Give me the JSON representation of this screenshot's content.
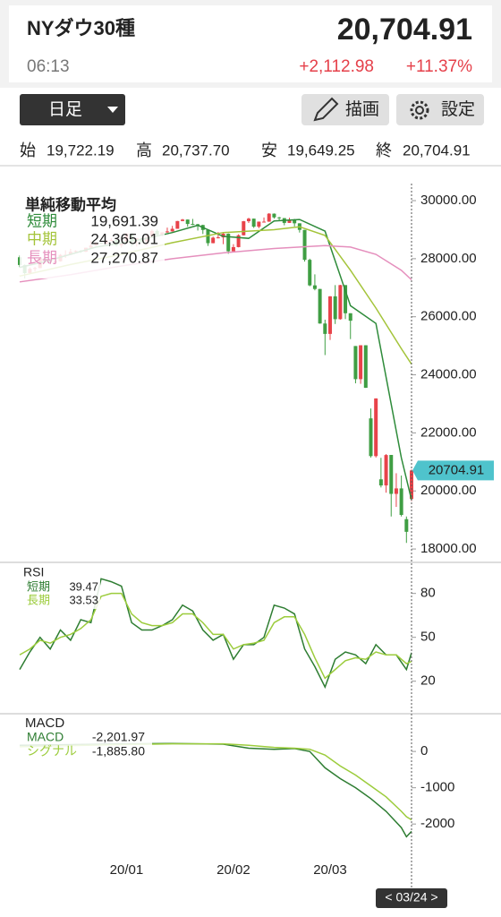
{
  "header": {
    "title": "NYダウ30種",
    "price": "20,704.91",
    "time": "06:13",
    "change": "+2,112.98",
    "change_pct": "+11.37%"
  },
  "controls": {
    "period": "日足",
    "draw": "描画",
    "settings": "設定"
  },
  "ohlc": [
    {
      "label": "始",
      "value": "19,722.19"
    },
    {
      "label": "高",
      "value": "20,737.70"
    },
    {
      "label": "安",
      "value": "19,649.25"
    },
    {
      "label": "終",
      "value": "20,704.91"
    }
  ],
  "cursor_label": "< 03/24 >",
  "chart_data": [
    {
      "type": "candlestick",
      "title": "単純移動平均",
      "up_color": "#e8434a",
      "down_color": "#3f9e43",
      "ylim": [
        17570,
        31050
      ],
      "yticks": [
        {
          "value": 30000,
          "label": "30000.00"
        },
        {
          "value": 28000,
          "label": "28000.00"
        },
        {
          "value": 26000,
          "label": "26000.00"
        },
        {
          "value": 24000,
          "label": "24000.00"
        },
        {
          "value": 22000,
          "label": "22000.00"
        },
        {
          "value": 20000,
          "label": "20000.00"
        },
        {
          "value": 18000,
          "label": "18000.00"
        }
      ],
      "last_label": "20704.91",
      "candles": [
        [
          28050,
          28110,
          27710,
          27783
        ],
        [
          27783,
          27800,
          27320,
          27503
        ],
        [
          27503,
          27700,
          27480,
          27650
        ],
        [
          27650,
          27720,
          27560,
          27677
        ],
        [
          27677,
          28060,
          27670,
          28015
        ],
        [
          28015,
          28030,
          27880,
          27909
        ],
        [
          27909,
          27940,
          27840,
          27881
        ],
        [
          27881,
          27930,
          27860,
          27911
        ],
        [
          27911,
          28160,
          27900,
          28132
        ],
        [
          28132,
          28290,
          28030,
          28135
        ],
        [
          28135,
          28340,
          28130,
          28235
        ],
        [
          28235,
          28290,
          28210,
          28267
        ],
        [
          28267,
          28300,
          28200,
          28239
        ],
        [
          28239,
          28380,
          28230,
          28377
        ],
        [
          28377,
          28610,
          28370,
          28455
        ],
        [
          28455,
          28580,
          28450,
          28551
        ],
        [
          28551,
          28560,
          28500,
          28515
        ],
        [
          28515,
          28640,
          28510,
          28621
        ],
        [
          28621,
          28700,
          28600,
          28645
        ],
        [
          28645,
          28650,
          28420,
          28462
        ],
        [
          28462,
          28550,
          28380,
          28538
        ],
        [
          28538,
          28880,
          28530,
          28868
        ],
        [
          28868,
          28870,
          28420,
          28634
        ],
        [
          28634,
          28710,
          28420,
          28703
        ],
        [
          28703,
          28710,
          28560,
          28583
        ],
        [
          28583,
          28860,
          28450,
          28745
        ],
        [
          28745,
          29010,
          28740,
          28956
        ],
        [
          28956,
          29010,
          28800,
          28823
        ],
        [
          28823,
          28910,
          28780,
          28907
        ],
        [
          28907,
          29070,
          28890,
          28940
        ],
        [
          28940,
          29130,
          28930,
          29030
        ],
        [
          29030,
          29300,
          29030,
          29297
        ],
        [
          29297,
          29370,
          29290,
          29348
        ],
        [
          29348,
          29350,
          29100,
          29196
        ],
        [
          29196,
          29370,
          29160,
          29186
        ],
        [
          29186,
          29200,
          28970,
          29160
        ],
        [
          29160,
          29170,
          28850,
          28990
        ],
        [
          28990,
          28990,
          28440,
          28535
        ],
        [
          28535,
          28760,
          28530,
          28723
        ],
        [
          28723,
          28920,
          28700,
          28734
        ],
        [
          28734,
          28890,
          28500,
          28859
        ],
        [
          28859,
          28870,
          28170,
          28256
        ],
        [
          28256,
          28500,
          28250,
          28399
        ],
        [
          28399,
          28840,
          28390,
          28807
        ],
        [
          28807,
          29300,
          28800,
          29290
        ],
        [
          29290,
          29410,
          29230,
          29379
        ],
        [
          29379,
          29380,
          29060,
          29102
        ],
        [
          29102,
          29280,
          29050,
          29276
        ],
        [
          29276,
          29420,
          29250,
          29276
        ],
        [
          29276,
          29570,
          29270,
          29551
        ],
        [
          29551,
          29560,
          29380,
          29423
        ],
        [
          29423,
          29440,
          29300,
          29398
        ],
        [
          29398,
          29400,
          29150,
          29232
        ],
        [
          29232,
          29410,
          29230,
          29348
        ],
        [
          29348,
          29370,
          29110,
          29219
        ],
        [
          29219,
          29220,
          28900,
          28992
        ],
        [
          28992,
          28992,
          27900,
          27961
        ],
        [
          27961,
          28000,
          27050,
          27081
        ],
        [
          27081,
          27460,
          26910,
          26957
        ],
        [
          26957,
          26960,
          25760,
          25767
        ],
        [
          25767,
          25900,
          24680,
          25409
        ],
        [
          25409,
          26710,
          25200,
          26703
        ],
        [
          26703,
          27090,
          25750,
          25917
        ],
        [
          25917,
          27100,
          25900,
          27091
        ],
        [
          27091,
          27090,
          25920,
          26121
        ],
        [
          26121,
          26120,
          25230,
          25864
        ],
        [
          24992,
          24992,
          23707,
          23851
        ],
        [
          23851,
          25020,
          23690,
          25018
        ],
        [
          25018,
          25020,
          23550,
          23553
        ],
        [
          22500,
          22840,
          21150,
          21200
        ],
        [
          21200,
          23190,
          21150,
          23186
        ],
        [
          20400,
          21140,
          20120,
          20189
        ],
        [
          20190,
          21270,
          19940,
          21237
        ],
        [
          21240,
          21240,
          19120,
          19899
        ],
        [
          19899,
          20610,
          19450,
          20087
        ],
        [
          20087,
          20530,
          19120,
          19174
        ],
        [
          19028,
          19120,
          18210,
          18592
        ],
        [
          19722.19,
          20737.7,
          19649.25,
          20704.91
        ]
      ],
      "series": [
        {
          "name": "短期",
          "color": "#2e8b3a",
          "last_value_label": "19,691.39",
          "x": [
            0,
            5,
            10,
            15,
            20,
            25,
            30,
            35,
            40,
            45,
            50,
            55,
            60,
            65,
            70,
            75,
            77
          ],
          "values": [
            27700,
            27900,
            28150,
            28400,
            28540,
            28700,
            28900,
            29150,
            28770,
            28700,
            29300,
            29350,
            28950,
            26380,
            25770,
            21140,
            19691.39
          ]
        },
        {
          "name": "中期",
          "color": "#a4c43a",
          "last_value_label": "24,365.01",
          "x": [
            0,
            10,
            20,
            30,
            40,
            50,
            55,
            60,
            65,
            70,
            75,
            77
          ],
          "values": [
            27400,
            27800,
            28150,
            28550,
            28900,
            29000,
            29100,
            28800,
            27600,
            26300,
            24900,
            24365.01
          ]
        },
        {
          "name": "長期",
          "color": "#e58fbd",
          "last_value_label": "27,270.87",
          "x": [
            0,
            10,
            20,
            30,
            40,
            50,
            60,
            65,
            70,
            75,
            77
          ],
          "values": [
            27200,
            27450,
            27750,
            28000,
            28200,
            28350,
            28450,
            28400,
            28150,
            27600,
            27270.87
          ]
        }
      ]
    },
    {
      "type": "line",
      "title": "RSI",
      "ylim": [
        -1,
        100
      ],
      "yticks": [
        80,
        50,
        20
      ],
      "series": [
        {
          "name": "短期",
          "color": "#2e7d32",
          "last_value_label": "39.47",
          "x": [
            0,
            2,
            4,
            6,
            8,
            10,
            12,
            14,
            16,
            18,
            20,
            22,
            24,
            26,
            28,
            30,
            32,
            34,
            36,
            38,
            40,
            42,
            44,
            46,
            48,
            50,
            52,
            54,
            56,
            58,
            60,
            62,
            64,
            66,
            68,
            70,
            72,
            74,
            76,
            77
          ],
          "values": [
            28,
            40,
            50,
            42,
            55,
            48,
            62,
            60,
            90,
            88,
            85,
            60,
            55,
            55,
            58,
            62,
            72,
            68,
            55,
            48,
            52,
            35,
            45,
            45,
            50,
            72,
            70,
            66,
            42,
            30,
            16,
            35,
            40,
            38,
            32,
            45,
            38,
            38,
            28,
            39.47
          ]
        },
        {
          "name": "長期",
          "color": "#9ccc3c",
          "last_value_label": "33.53",
          "x": [
            0,
            2,
            4,
            6,
            8,
            10,
            12,
            14,
            16,
            18,
            20,
            22,
            24,
            26,
            28,
            30,
            32,
            34,
            36,
            38,
            40,
            42,
            44,
            46,
            48,
            50,
            52,
            54,
            56,
            58,
            60,
            62,
            64,
            66,
            68,
            70,
            72,
            74,
            76,
            77
          ],
          "values": [
            38,
            42,
            48,
            46,
            50,
            52,
            56,
            62,
            78,
            80,
            80,
            66,
            60,
            58,
            58,
            60,
            66,
            66,
            60,
            52,
            52,
            42,
            45,
            46,
            48,
            60,
            64,
            64,
            52,
            36,
            22,
            28,
            34,
            36,
            35,
            40,
            38,
            38,
            32,
            33.53
          ]
        }
      ]
    },
    {
      "type": "line",
      "title": "MACD",
      "ylim": [
        -3600,
        1040
      ],
      "yticks": [
        0,
        -1000,
        -2000
      ],
      "xlim": [
        0,
        77
      ],
      "xticks": [
        {
          "value": 21,
          "label": "20/01"
        },
        {
          "value": 42,
          "label": "20/02"
        },
        {
          "value": 61,
          "label": "20/03"
        }
      ],
      "series": [
        {
          "name": "MACD",
          "color": "#2e7d32",
          "last_value_label": "-2,201.97",
          "x": [
            0,
            10,
            20,
            30,
            40,
            45,
            50,
            54,
            57,
            60,
            63,
            66,
            69,
            72,
            75,
            76,
            77
          ],
          "values": [
            170,
            190,
            210,
            220,
            200,
            90,
            60,
            80,
            0,
            -450,
            -750,
            -1000,
            -1300,
            -1650,
            -2100,
            -2350,
            -2201.97
          ]
        },
        {
          "name": "シグナル",
          "color": "#9ccc3c",
          "last_value_label": "-1,885.80",
          "x": [
            0,
            10,
            20,
            30,
            40,
            45,
            50,
            54,
            57,
            60,
            63,
            66,
            69,
            72,
            75,
            76,
            77
          ],
          "values": [
            130,
            160,
            190,
            210,
            210,
            170,
            110,
            90,
            60,
            -100,
            -400,
            -650,
            -950,
            -1250,
            -1650,
            -1800,
            -1885.8
          ]
        }
      ]
    }
  ]
}
